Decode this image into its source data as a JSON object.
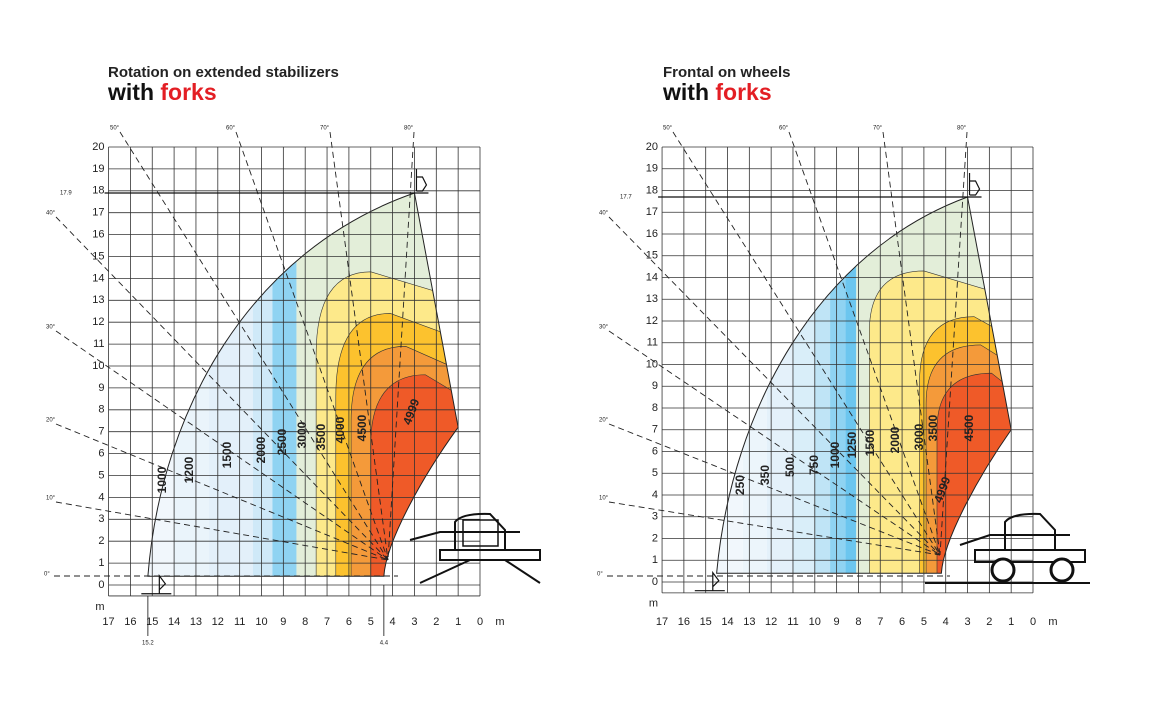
{
  "panels": [
    {
      "title": "Rotation on extended stabilizers",
      "subtitle_prefix": "with",
      "subtitle_highlight": "forks",
      "y_labels": [
        "20",
        "19",
        "18",
        "17",
        "16",
        "15",
        "14",
        "13",
        "12",
        "11",
        "10",
        "9",
        "8",
        "7",
        "6",
        "5",
        "4",
        "3",
        "2",
        "1",
        "0"
      ],
      "y_unit": "m",
      "x_labels": [
        "17",
        "16",
        "15",
        "14",
        "13",
        "12",
        "11",
        "10",
        "9",
        "8",
        "7",
        "6",
        "5",
        "4",
        "3",
        "2",
        "1",
        "0"
      ],
      "x_unit": "m",
      "angle_labels": [
        "50°",
        "60°",
        "70°",
        "80°",
        "40°",
        "30°",
        "20°",
        "10°",
        "0°"
      ],
      "marks": [
        "17.9",
        "15.2",
        "4.4"
      ],
      "loads": [
        "1000",
        "1200",
        "1500",
        "2000",
        "2500",
        "3000",
        "3500",
        "4000",
        "4500",
        "4999"
      ]
    },
    {
      "title": "Frontal on wheels",
      "subtitle_prefix": "with",
      "subtitle_highlight": "forks",
      "y_labels": [
        "20",
        "19",
        "18",
        "17",
        "16",
        "15",
        "14",
        "13",
        "12",
        "11",
        "10",
        "9",
        "8",
        "7",
        "6",
        "5",
        "4",
        "3",
        "2",
        "1",
        "0"
      ],
      "y_unit": "m",
      "x_labels": [
        "17",
        "16",
        "15",
        "14",
        "13",
        "12",
        "11",
        "10",
        "9",
        "8",
        "7",
        "6",
        "5",
        "4",
        "3",
        "2",
        "1",
        "0"
      ],
      "x_unit": "m",
      "angle_labels": [
        "50°",
        "60°",
        "70°",
        "80°",
        "40°",
        "30°",
        "20°",
        "10°",
        "0°"
      ],
      "marks": [
        "17.7"
      ],
      "loads": [
        "250",
        "350",
        "500",
        "750",
        "1000",
        "1250",
        "1500",
        "2000",
        "3000",
        "3500",
        "4500",
        "4999"
      ]
    }
  ]
}
